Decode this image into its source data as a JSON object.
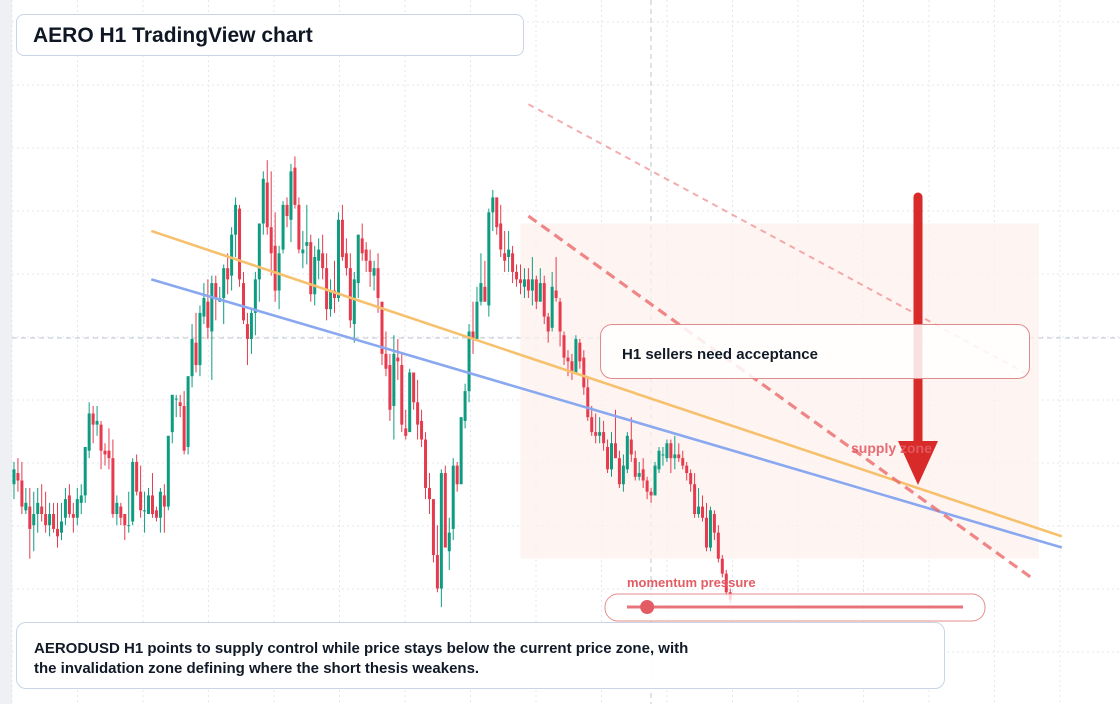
{
  "header": {
    "title": "AERO H1 TradingView chart"
  },
  "callout": {
    "text": "H1 sellers need acceptance"
  },
  "annotations": {
    "supply_zone": "supply zone",
    "momentum": "momentum pressure",
    "momentum_level": 0.06
  },
  "summary": {
    "line1": "AERODUSD H1 points to supply control while price stays below the current price zone, with",
    "line2": "the invalidation zone defining where the short thesis weakens."
  },
  "colors": {
    "up": "#0e9c80",
    "down": "#e63b4e",
    "background": "#ffffff",
    "grid": "#e3e7ee",
    "trend_orange": "#f7c06d",
    "trend_blue": "#8aa8f0",
    "supply_zone": "#fdf2ed",
    "arrow": "#d92a2a",
    "momentum": "#e35c64"
  },
  "chart_data": {
    "type": "candlestick",
    "symbol": "AERODUSD",
    "timeframe": "H1",
    "direction_signal": "down",
    "candles": [
      [
        9.4,
        10,
        9,
        9.8
      ],
      [
        9.7,
        10.1,
        9.2,
        9.5
      ],
      [
        9.5,
        10,
        8.6,
        8.8
      ],
      [
        8.7,
        9.3,
        8.6,
        8.9
      ],
      [
        8.8,
        9.3,
        7.4,
        8.2
      ],
      [
        8.3,
        9.2,
        7.6,
        8.6
      ],
      [
        8.6,
        9.3,
        8.1,
        8.9
      ],
      [
        8.8,
        9.4,
        8.4,
        8.6
      ],
      [
        8.6,
        9.2,
        8.1,
        8.3
      ],
      [
        8.3,
        8.9,
        8,
        8.6
      ],
      [
        8.6,
        8.9,
        8.1,
        8.2
      ],
      [
        8.2,
        8.9,
        7.7,
        8
      ],
      [
        8.1,
        8.9,
        7.9,
        8.4
      ],
      [
        8.5,
        9.3,
        8.3,
        9
      ],
      [
        9.1,
        9.4,
        8.5,
        8.6
      ],
      [
        8.6,
        8.9,
        8.1,
        8.5
      ],
      [
        8.5,
        9.3,
        8.3,
        9
      ],
      [
        8.9,
        9.4,
        8.6,
        9.1
      ],
      [
        9.1,
        10.4,
        8.9,
        10.4
      ],
      [
        10.3,
        11.6,
        10.1,
        11.3
      ],
      [
        11.3,
        11.5,
        10.5,
        11
      ],
      [
        11,
        11.5,
        10.7,
        11.1
      ],
      [
        11,
        11.1,
        9.8,
        10.3
      ],
      [
        10.3,
        10.5,
        9.9,
        10.2
      ],
      [
        10.3,
        10.9,
        9.8,
        10.1
      ],
      [
        10.1,
        10.6,
        8.5,
        8.6
      ],
      [
        8.6,
        9.1,
        8.3,
        8.9
      ],
      [
        8.8,
        8.9,
        8.3,
        8.5
      ],
      [
        8.6,
        8.6,
        7.9,
        8.3
      ],
      [
        8.3,
        9.2,
        8.1,
        8.3
      ],
      [
        8.4,
        10.1,
        8.3,
        10
      ],
      [
        10,
        10.2,
        9.1,
        9.2
      ],
      [
        9.2,
        9.9,
        8.5,
        8.7
      ],
      [
        8.7,
        9.2,
        8.1,
        8.7
      ],
      [
        8.6,
        9.3,
        8.6,
        9.1
      ],
      [
        9.1,
        9.7,
        8.5,
        8.6
      ],
      [
        8.7,
        8.8,
        8.4,
        8.5
      ],
      [
        8.5,
        9.3,
        8.1,
        9.2
      ],
      [
        9.1,
        9.4,
        8.1,
        8.8
      ],
      [
        8.8,
        10.7,
        8.7,
        10.7
      ],
      [
        10.8,
        11.8,
        10.5,
        11.8
      ],
      [
        11.7,
        11.8,
        11.2,
        11.7
      ],
      [
        11.6,
        11.8,
        11.2,
        11.5
      ],
      [
        11.5,
        11.9,
        10.2,
        10.3
      ],
      [
        10.4,
        12.3,
        10.2,
        12.3
      ],
      [
        12.3,
        13.7,
        12,
        13.3
      ],
      [
        13.2,
        14,
        12.4,
        12.6
      ],
      [
        12.6,
        14.2,
        12.3,
        14
      ],
      [
        13.9,
        14.8,
        13.7,
        14.4
      ],
      [
        14.3,
        14.9,
        13.3,
        13.6
      ],
      [
        13.5,
        15,
        12.2,
        14.8
      ],
      [
        14.8,
        15,
        13.8,
        14.4
      ],
      [
        14.3,
        14.7,
        14.3,
        14.4
      ],
      [
        14.4,
        15.3,
        13.7,
        15.2
      ],
      [
        15.2,
        15.6,
        14.5,
        14.9
      ],
      [
        15,
        16.3,
        14.6,
        16.1
      ],
      [
        16.1,
        17.1,
        15.5,
        16.9
      ],
      [
        16.8,
        16.9,
        14.7,
        14.9
      ],
      [
        14.8,
        15.1,
        13.7,
        13.8
      ],
      [
        13.7,
        14,
        12.6,
        13.3
      ],
      [
        13.3,
        14.1,
        12.9,
        14
      ],
      [
        14,
        15.1,
        13.4,
        14.9
      ],
      [
        14.9,
        16.4,
        14.3,
        16.4
      ],
      [
        16.4,
        17.8,
        16.1,
        17.6
      ],
      [
        17.5,
        18.1,
        16.1,
        16.3
      ],
      [
        16.3,
        17.8,
        15,
        15.6
      ],
      [
        15.8,
        16.7,
        14.3,
        14.6
      ],
      [
        14.6,
        15.8,
        14.1,
        15.6
      ],
      [
        15.7,
        17,
        15.6,
        16.9
      ],
      [
        16.9,
        17.1,
        16.3,
        16.6
      ],
      [
        16.5,
        18,
        15.9,
        17.8
      ],
      [
        17.9,
        18.2,
        16.8,
        16.9
      ],
      [
        16.9,
        17.1,
        15.6,
        15.7
      ],
      [
        15.6,
        16.2,
        15.2,
        15.7
      ],
      [
        15.8,
        16.9,
        15.3,
        15.9
      ],
      [
        15.9,
        16.1,
        14.3,
        14.5
      ],
      [
        14.5,
        15.8,
        14.2,
        15.5
      ],
      [
        15.4,
        16,
        14.9,
        15.7
      ],
      [
        15.6,
        16.1,
        14.9,
        15.2
      ],
      [
        15.2,
        15.6,
        13.8,
        14.1
      ],
      [
        14.1,
        14.9,
        13.9,
        14.6
      ],
      [
        14.6,
        15.4,
        14,
        14.4
      ],
      [
        14.4,
        16.7,
        14.3,
        16.5
      ],
      [
        16.5,
        16.9,
        15.4,
        15.5
      ],
      [
        15.6,
        16,
        15,
        15.2
      ],
      [
        15.2,
        15.6,
        13.6,
        13.8
      ],
      [
        13.7,
        15.1,
        13.2,
        14.9
      ],
      [
        14.8,
        16.1,
        14.4,
        16.1
      ],
      [
        16,
        16.4,
        15.4,
        15.6
      ],
      [
        15.7,
        15.9,
        15.1,
        15.4
      ],
      [
        15.4,
        15.7,
        14.7,
        15.1
      ],
      [
        15,
        15.4,
        14.6,
        15.2
      ],
      [
        15.2,
        15.6,
        14,
        14.4
      ],
      [
        14.3,
        14.3,
        12.6,
        12.9
      ],
      [
        12.9,
        13.5,
        12.3,
        12.5
      ],
      [
        12.6,
        12.9,
        11.1,
        11.4
      ],
      [
        11.5,
        13.4,
        10.6,
        12.9
      ],
      [
        12.8,
        13.3,
        12.2,
        12.7
      ],
      [
        12.6,
        12.9,
        10.8,
        11
      ],
      [
        10.9,
        11.4,
        10.6,
        10.7
      ],
      [
        10.8,
        12.5,
        10.8,
        12.4
      ],
      [
        12.4,
        12.4,
        11.4,
        11.6
      ],
      [
        11.6,
        12.2,
        10.6,
        11
      ],
      [
        11.1,
        11.4,
        10.4,
        10.6
      ],
      [
        10.6,
        10.8,
        9,
        9.3
      ],
      [
        9.3,
        9.7,
        8.6,
        9
      ],
      [
        9,
        9,
        7.3,
        7.5
      ],
      [
        7.5,
        8.3,
        6.5,
        6.6
      ],
      [
        6.6,
        9.8,
        6.1,
        9.7
      ],
      [
        9.7,
        9.9,
        7.7,
        7.7
      ],
      [
        7.6,
        8.5,
        7.1,
        8.1
      ],
      [
        8.2,
        10.1,
        7.9,
        9.9
      ],
      [
        9.9,
        10,
        9.2,
        9.4
      ],
      [
        9.4,
        11.2,
        9.4,
        11.2
      ],
      [
        11.1,
        12.1,
        10.9,
        11.9
      ],
      [
        11.9,
        13.7,
        11.6,
        13.5
      ],
      [
        13.5,
        14.3,
        12.9,
        13.3
      ],
      [
        13.3,
        14.7,
        13.3,
        14.3
      ],
      [
        14.3,
        15.6,
        14.2,
        14.8
      ],
      [
        14.7,
        15.4,
        14.3,
        14.3
      ],
      [
        14.2,
        16.8,
        13.9,
        16.7
      ],
      [
        16.7,
        17.3,
        16.2,
        17.1
      ],
      [
        17.1,
        17.1,
        16.1,
        16.3
      ],
      [
        16.4,
        16.9,
        15.5,
        15.7
      ],
      [
        15.6,
        16.2,
        15.1,
        15.4
      ],
      [
        15.5,
        16.2,
        15.1,
        15.7
      ],
      [
        15.6,
        15.8,
        14.8,
        15.1
      ],
      [
        15.1,
        15.3,
        14.7,
        14.9
      ],
      [
        14.9,
        15.3,
        14.5,
        14.8
      ],
      [
        14.7,
        15.2,
        14.4,
        14.9
      ],
      [
        14.9,
        15.2,
        14.4,
        14.6
      ],
      [
        14.6,
        15.5,
        14.2,
        14.9
      ],
      [
        14.9,
        15,
        14.1,
        14.3
      ],
      [
        14.3,
        15.2,
        14.3,
        14.8
      ],
      [
        14.8,
        15,
        13.7,
        13.9
      ],
      [
        13.9,
        14,
        13.2,
        13.5
      ],
      [
        13.6,
        15.1,
        13.5,
        14.7
      ],
      [
        14.6,
        15.5,
        14.3,
        14.4
      ],
      [
        14.3,
        14.4,
        13.1,
        13.5
      ],
      [
        13.4,
        13.5,
        12.6,
        12.8
      ],
      [
        12.8,
        13,
        12.3,
        12.7
      ],
      [
        12.7,
        12.9,
        12.2,
        12.4
      ],
      [
        12.4,
        13.4,
        12.4,
        13.3
      ],
      [
        13.2,
        13.3,
        12.5,
        12.7
      ],
      [
        12.8,
        13,
        11.8,
        12
      ],
      [
        12,
        12.3,
        11.1,
        11.2
      ],
      [
        11.2,
        11.5,
        10.7,
        10.8
      ],
      [
        10.8,
        11.3,
        10.5,
        10.7
      ],
      [
        10.7,
        11.2,
        10.5,
        10.8
      ],
      [
        10.8,
        11.1,
        10.3,
        10.5
      ],
      [
        10.4,
        10.6,
        9.7,
        9.8
      ],
      [
        9.8,
        10.8,
        9.6,
        10.5
      ],
      [
        10.5,
        11.4,
        10.1,
        10.1
      ],
      [
        10.1,
        10.3,
        9.3,
        9.4
      ],
      [
        9.4,
        10.2,
        9.2,
        9.9
      ],
      [
        9.8,
        10.8,
        9.7,
        10.7
      ],
      [
        10.6,
        11.2,
        10,
        10.2
      ],
      [
        10.1,
        10.3,
        9.5,
        9.6
      ],
      [
        9.6,
        10,
        9.5,
        9.7
      ],
      [
        9.8,
        10.1,
        9.3,
        9.5
      ],
      [
        9.5,
        9.6,
        9,
        9.2
      ],
      [
        9.2,
        9.3,
        8.9,
        9.1
      ],
      [
        9.1,
        10,
        9.1,
        9.9
      ],
      [
        9.8,
        10.4,
        9.7,
        10.3
      ],
      [
        10.2,
        10.4,
        9.9,
        10.2
      ],
      [
        10.1,
        10.6,
        10,
        10.5
      ],
      [
        10.5,
        10.6,
        9.7,
        10.1
      ],
      [
        10.1,
        10.7,
        9.8,
        10.2
      ],
      [
        10.2,
        10.5,
        10,
        10.1
      ],
      [
        10.1,
        10.3,
        9.8,
        9.9
      ],
      [
        9.9,
        10,
        9.5,
        9.7
      ],
      [
        9.7,
        9.8,
        9.2,
        9.4
      ],
      [
        9.4,
        9.7,
        8.5,
        8.6
      ],
      [
        8.6,
        9.3,
        8.5,
        8.8
      ],
      [
        8.8,
        9.1,
        8.4,
        8.5
      ],
      [
        8.5,
        8.9,
        7.6,
        7.7
      ],
      [
        7.7,
        8.8,
        7.6,
        8.7
      ],
      [
        8.6,
        8.7,
        7.9,
        8.1
      ],
      [
        8.1,
        8.3,
        7.3,
        7.4
      ],
      [
        7.4,
        7.5,
        6.9,
        7
      ],
      [
        7,
        7.1,
        6.4,
        6.5
      ],
      [
        6.5,
        6.6,
        6.2,
        6.3
      ]
    ],
    "trendlines": [
      {
        "name": "orange",
        "x": [
          34.7,
          264.8
        ],
        "y": [
          16.2,
          8.0
        ]
      },
      {
        "name": "blue",
        "x": [
          34.7,
          264.8
        ],
        "y": [
          14.9,
          7.7
        ]
      }
    ],
    "projection_lines": [
      {
        "name": "upper-light",
        "x": [
          130,
          257
        ],
        "y": [
          19.6,
          12.3
        ]
      },
      {
        "name": "lower-dashed",
        "x": [
          130,
          257
        ],
        "y": [
          16.6,
          6.9
        ]
      }
    ],
    "supply_zone": {
      "x": [
        128,
        259
      ],
      "y": [
        7.4,
        16.4
      ]
    },
    "ranges": {
      "x": [
        -0.5,
        279.5
      ],
      "y": [
        3.5,
        22.4
      ]
    },
    "grid": true
  }
}
